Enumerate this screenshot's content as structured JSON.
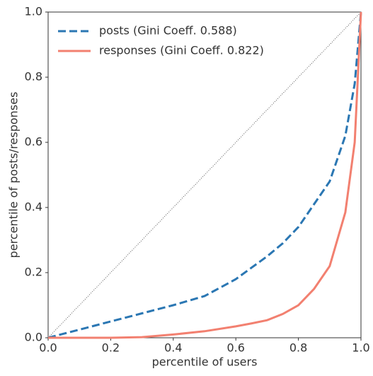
{
  "chart_data": {
    "type": "line",
    "xlabel": "percentile of users",
    "ylabel": "percentile of posts/responses",
    "x": [
      0,
      0.1,
      0.2,
      0.3,
      0.4,
      0.5,
      0.6,
      0.65,
      0.7,
      0.75,
      0.8,
      0.85,
      0.9,
      0.95,
      0.98,
      1.0
    ],
    "series": [
      {
        "name": "posts (Gini Coeff. 0.588)",
        "color": "#2b77b3",
        "dash": true,
        "values": [
          0,
          0.025,
          0.05,
          0.075,
          0.1,
          0.128,
          0.18,
          0.215,
          0.25,
          0.29,
          0.34,
          0.41,
          0.48,
          0.62,
          0.78,
          1.0
        ]
      },
      {
        "name": "responses (Gini Coeff. 0.822)",
        "color": "#f28070",
        "dash": false,
        "values": [
          0,
          0.0,
          0.0,
          0.002,
          0.01,
          0.02,
          0.035,
          0.044,
          0.054,
          0.073,
          0.1,
          0.15,
          0.22,
          0.385,
          0.6,
          1.0
        ]
      }
    ],
    "xlim": [
      0,
      1
    ],
    "ylim": [
      0,
      1
    ],
    "xticks": [
      {
        "value": 0,
        "label": "0.0"
      },
      0.2,
      0.4,
      0.6,
      0.8,
      {
        "value": 1,
        "label": "1.0"
      }
    ],
    "yticks": [
      {
        "value": 0,
        "label": "0.0"
      },
      0.2,
      0.4,
      0.6,
      0.8,
      {
        "value": 1,
        "label": "1.0"
      }
    ],
    "legend": "upper left"
  }
}
